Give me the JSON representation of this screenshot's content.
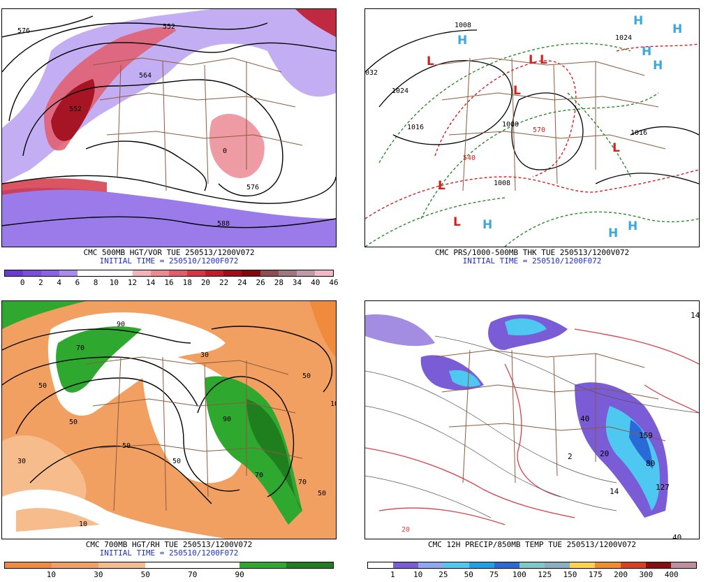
{
  "panels": [
    {
      "id": "p500",
      "caption": "CMC 500MB HGT/VOR TUE 250513/1200V072",
      "init": "INITIAL TIME = 250510/1200F072",
      "map_bg": "#ffffff",
      "contour_labels": [
        "576",
        "552",
        "564",
        "552",
        "0",
        "576",
        "588"
      ],
      "colorbar": {
        "colors": [
          "#6b3bd6",
          "#7a4fe0",
          "#8a63e6",
          "#a98cee",
          "#ffffff",
          "#ffffff",
          "#ffffff",
          "#f4b4bc",
          "#ec8a94",
          "#e25c6a",
          "#d43646",
          "#c01c2c",
          "#a00c1a",
          "#86060f",
          "#8c4f52",
          "#a07680",
          "#c09aa8",
          "#f0b8c8"
        ],
        "labels": [
          "0",
          "2",
          "4",
          "6",
          "8",
          "10",
          "12",
          "14",
          "16",
          "18",
          "20",
          "22",
          "24",
          "26",
          "28",
          "34",
          "40",
          "46"
        ],
        "label_style": "boundary"
      }
    },
    {
      "id": "pprs",
      "caption": "CMC PRS/1000-500MB THK TUE 250513/1200V072",
      "init": "INITIAL TIME = 250510/1200F072",
      "map_bg": "#ffffff",
      "contour_labels": [
        "1008",
        "032",
        "1024",
        "1016",
        "1000",
        "1008",
        "1024",
        "1016",
        "570",
        "540"
      ],
      "highs": [
        "H",
        "H",
        "H",
        "H",
        "H",
        "H",
        "H",
        "H"
      ],
      "lows": [
        "L",
        "L",
        "L",
        "L",
        "L",
        "L",
        "L"
      ]
    },
    {
      "id": "p700",
      "caption": "CMC 700MB HGT/RH TUE 250513/1200V072",
      "init": "INITIAL TIME = 250510/1200F072",
      "map_bg": "#f2a062",
      "contour_labels": [
        "50",
        "90",
        "50",
        "70",
        "50",
        "30",
        "50",
        "90",
        "70",
        "50",
        "10",
        "70",
        "10",
        "50",
        "30"
      ],
      "colorbar": {
        "colors": [
          "#f08a3c",
          "#f2a062",
          "#f6bc8c",
          "#ffffff",
          "#ffffff",
          "#2fa82f",
          "#1f7f1f"
        ],
        "labels": [
          "10",
          "30",
          "50",
          "70",
          "90"
        ],
        "label_style": "boundary"
      }
    },
    {
      "id": "pprecip",
      "caption": "CMC 12H PRECIP/850MB TEMP TUE 250513/1200V072",
      "init": "",
      "map_bg": "#ffffff",
      "contour_labels": [
        "40",
        "159",
        "80",
        "127",
        "14",
        "40",
        "20",
        "20",
        "14",
        "2"
      ],
      "colorbar": {
        "colors": [
          "#ffffff",
          "#7a5cd6",
          "#8ea8f4",
          "#4ec8f0",
          "#1ea0e6",
          "#2a6ad8",
          "#7ec8c8",
          "#8ab0c0",
          "#ffd24a",
          "#f28c28",
          "#d84020",
          "#8a1010",
          "#c08ca0"
        ],
        "labels": [
          "1",
          "10",
          "25",
          "50",
          "75",
          "100",
          "125",
          "150",
          "175",
          "200",
          "300",
          "400"
        ],
        "label_style": "boundary"
      }
    }
  ]
}
